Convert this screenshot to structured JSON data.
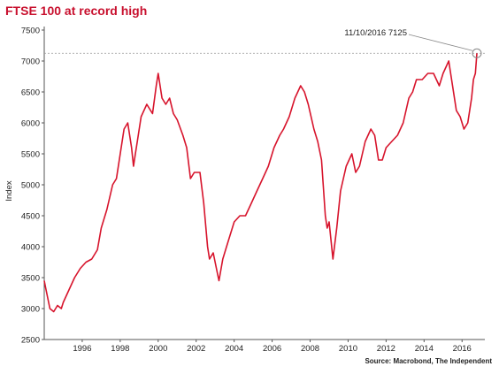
{
  "title": "FTSE 100 at record high",
  "source": "Source: Macrobond, The Independent",
  "chart_data": {
    "type": "line",
    "title": "FTSE 100 at record high",
    "xlabel": "",
    "ylabel": "Index",
    "xlim": [
      1994.0,
      2017.2
    ],
    "ylim": [
      2500,
      7500
    ],
    "xticks": [
      1996,
      1998,
      2000,
      2002,
      2004,
      2006,
      2008,
      2010,
      2012,
      2014,
      2016
    ],
    "yticks": [
      2500,
      3000,
      3500,
      4000,
      4500,
      5000,
      5500,
      6000,
      6500,
      7000,
      7500
    ],
    "grid": false,
    "reference_line": 7125,
    "annotation": {
      "text": "11/10/2016 7125",
      "x": 2016.78,
      "y": 7125
    },
    "line_color": "#d7142c",
    "series": [
      {
        "name": "",
        "x": [
          1994.0,
          1994.1,
          1994.3,
          1994.5,
          1994.7,
          1994.9,
          1995.0,
          1995.3,
          1995.6,
          1995.9,
          1996.2,
          1996.5,
          1996.8,
          1997.0,
          1997.3,
          1997.6,
          1997.8,
          1998.0,
          1998.2,
          1998.4,
          1998.6,
          1998.7,
          1998.8,
          1998.9,
          1999.1,
          1999.4,
          1999.7,
          1999.9,
          2000.0,
          2000.2,
          2000.4,
          2000.6,
          2000.8,
          2001.0,
          2001.3,
          2001.5,
          2001.7,
          2001.9,
          2002.2,
          2002.4,
          2002.6,
          2002.7,
          2002.9,
          2003.1,
          2003.2,
          2003.4,
          2003.7,
          2004.0,
          2004.3,
          2004.6,
          2004.9,
          2005.2,
          2005.5,
          2005.8,
          2006.1,
          2006.4,
          2006.6,
          2006.9,
          2007.2,
          2007.5,
          2007.7,
          2007.9,
          2008.2,
          2008.4,
          2008.6,
          2008.8,
          2008.9,
          2009.0,
          2009.2,
          2009.4,
          2009.6,
          2009.9,
          2010.2,
          2010.4,
          2010.6,
          2010.9,
          2011.2,
          2011.4,
          2011.6,
          2011.8,
          2012.0,
          2012.3,
          2012.6,
          2012.9,
          2013.2,
          2013.4,
          2013.6,
          2013.9,
          2014.2,
          2014.5,
          2014.8,
          2015.0,
          2015.3,
          2015.5,
          2015.7,
          2015.9,
          2016.1,
          2016.3,
          2016.5,
          2016.6,
          2016.7,
          2016.78
        ],
        "values": [
          3450,
          3300,
          3000,
          2950,
          3050,
          3000,
          3100,
          3300,
          3500,
          3650,
          3750,
          3800,
          3950,
          4300,
          4600,
          5000,
          5100,
          5500,
          5900,
          6000,
          5600,
          5300,
          5500,
          5700,
          6100,
          6300,
          6150,
          6600,
          6800,
          6400,
          6300,
          6400,
          6150,
          6050,
          5800,
          5600,
          5100,
          5200,
          5200,
          4700,
          4000,
          3800,
          3900,
          3600,
          3450,
          3800,
          4100,
          4400,
          4500,
          4500,
          4700,
          4900,
          5100,
          5300,
          5600,
          5800,
          5900,
          6100,
          6400,
          6600,
          6500,
          6300,
          5900,
          5700,
          5400,
          4500,
          4300,
          4400,
          3800,
          4300,
          4900,
          5300,
          5500,
          5200,
          5300,
          5700,
          5900,
          5800,
          5400,
          5400,
          5600,
          5700,
          5800,
          6000,
          6400,
          6500,
          6700,
          6700,
          6800,
          6800,
          6600,
          6800,
          7000,
          6600,
          6200,
          6100,
          5900,
          6000,
          6400,
          6700,
          6800,
          7125
        ]
      }
    ]
  }
}
